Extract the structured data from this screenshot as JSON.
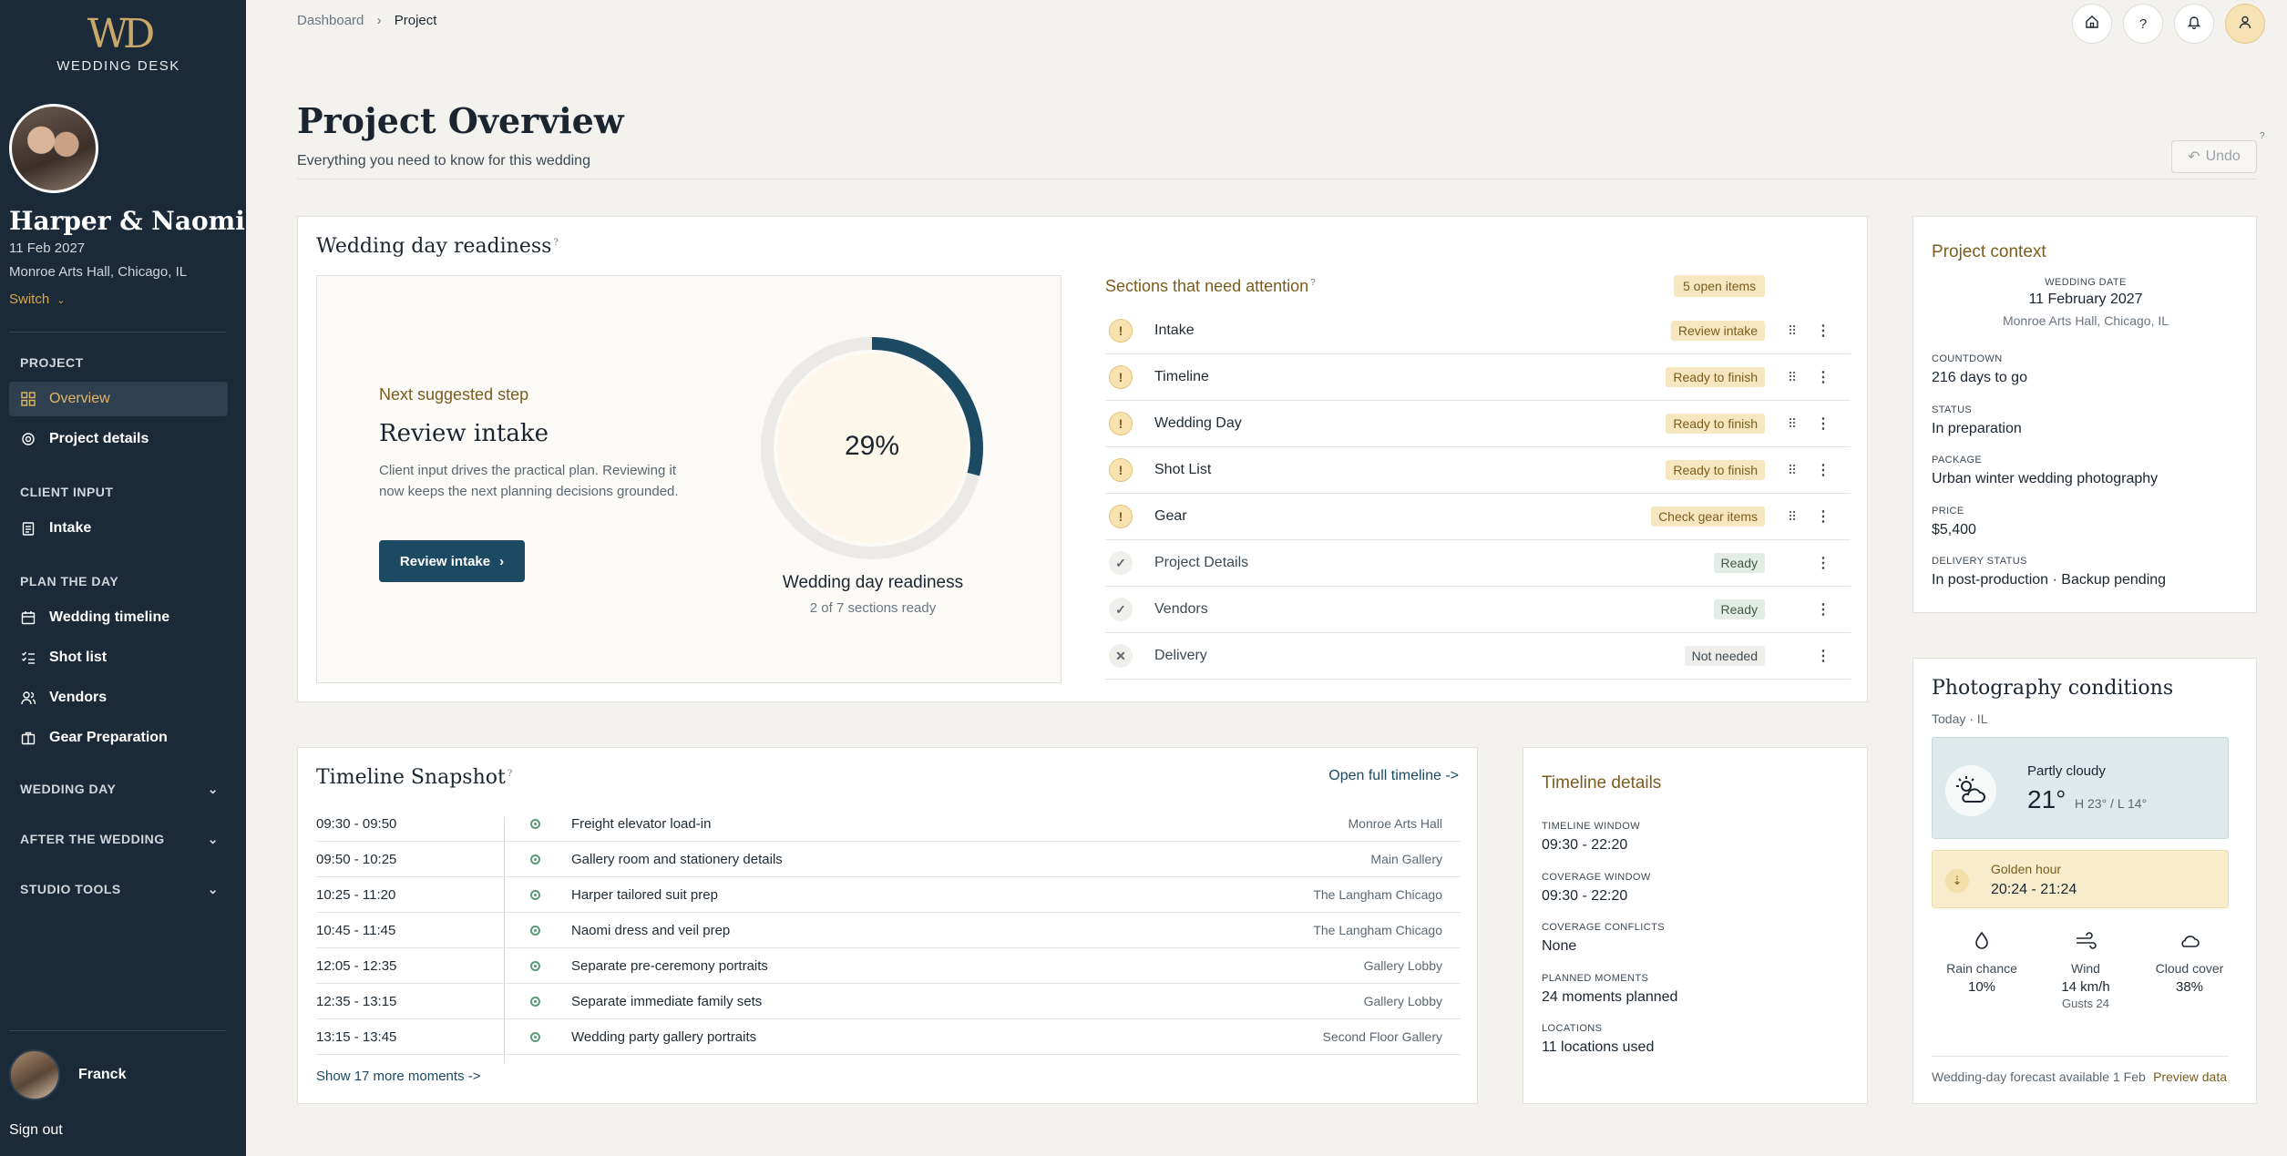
{
  "sidebar": {
    "logo_monogram": "WD",
    "brand": "WEDDING DESK",
    "couple": "Harper & Naomi",
    "date": "11 Feb 2027",
    "venue": "Monroe Arts Hall, Chicago, IL",
    "switch_label": "Switch",
    "sections": {
      "project": "PROJECT",
      "client_input": "CLIENT INPUT",
      "plan_the_day": "PLAN THE DAY"
    },
    "items": {
      "overview": "Overview",
      "project_details": "Project details",
      "intake": "Intake",
      "wedding_timeline": "Wedding timeline",
      "shot_list": "Shot list",
      "vendors": "Vendors",
      "gear_preparation": "Gear Preparation"
    },
    "groups": {
      "wedding_day": "WEDDING DAY",
      "after_the_wedding": "AFTER THE WEDDING",
      "studio_tools": "STUDIO TOOLS"
    },
    "user_name": "Franck",
    "sign_out": "Sign out"
  },
  "breadcrumb": {
    "root": "Dashboard",
    "sep": "›",
    "current": "Project"
  },
  "header": {
    "title": "Project Overview",
    "subtitle": "Everything you need to know for this wedding",
    "undo_label": "Undo"
  },
  "readiness": {
    "title": "Wedding day readiness",
    "next_step_label": "Next suggested step",
    "next_step_title": "Review intake",
    "next_step_desc": "Client input drives the practical plan. Reviewing it now keeps the next planning decisions grounded.",
    "button_label": "Review intake",
    "percent_value": 0.29,
    "percent_label": "29%",
    "ring_label": "Wedding day readiness",
    "ring_sub": "2 of 7 sections ready"
  },
  "attention": {
    "title": "Sections that need attention",
    "badge": "5 open items",
    "rows": [
      {
        "name": "Intake",
        "tag": "Review intake",
        "status": "warn"
      },
      {
        "name": "Timeline",
        "tag": "Ready to finish",
        "status": "warn"
      },
      {
        "name": "Wedding Day",
        "tag": "Ready to finish",
        "status": "warn"
      },
      {
        "name": "Shot List",
        "tag": "Ready to finish",
        "status": "warn"
      },
      {
        "name": "Gear",
        "tag": "Check gear items",
        "status": "warn"
      },
      {
        "name": "Project Details",
        "tag": "Ready",
        "status": "ok"
      },
      {
        "name": "Vendors",
        "tag": "Ready",
        "status": "ok"
      },
      {
        "name": "Delivery",
        "tag": "Not needed",
        "status": "na"
      }
    ]
  },
  "context": {
    "title": "Project context",
    "wedding_date_label": "WEDDING DATE",
    "wedding_date": "11 February 2027",
    "venue": "Monroe Arts Hall, Chicago, IL",
    "countdown_label": "COUNTDOWN",
    "countdown": "216 days to go",
    "status_label": "STATUS",
    "status": "In preparation",
    "package_label": "PACKAGE",
    "package": "Urban winter wedding photography",
    "price_label": "PRICE",
    "price": "$5,400",
    "delivery_label": "DELIVERY STATUS",
    "delivery": "In post-production · Backup pending"
  },
  "conditions": {
    "title": "Photography conditions",
    "subtitle": "Today · IL",
    "weather": "Partly cloudy",
    "temp": "21°",
    "hilo": "H 23° / L 14°",
    "golden_label": "Golden hour",
    "golden_value": "20:24 - 21:24",
    "rain_label": "Rain chance",
    "rain_value": "10%",
    "wind_label": "Wind",
    "wind_value": "14 km/h",
    "wind_gusts": "Gusts 24",
    "cloud_label": "Cloud cover",
    "cloud_value": "38%",
    "footer": "Wedding-day forecast available 1 Feb",
    "preview_link": "Preview data"
  },
  "timeline": {
    "title": "Timeline Snapshot",
    "open_link": "Open full timeline ->",
    "rows": [
      {
        "time": "09:30 - 09:50",
        "event": "Freight elevator load-in",
        "location": "Monroe Arts Hall"
      },
      {
        "time": "09:50 - 10:25",
        "event": "Gallery room and stationery details",
        "location": "Main Gallery"
      },
      {
        "time": "10:25 - 11:20",
        "event": "Harper tailored suit prep",
        "location": "The Langham Chicago"
      },
      {
        "time": "10:45 - 11:45",
        "event": "Naomi dress and veil prep",
        "location": "The Langham Chicago"
      },
      {
        "time": "12:05 - 12:35",
        "event": "Separate pre-ceremony portraits",
        "location": "Gallery Lobby"
      },
      {
        "time": "12:35 - 13:15",
        "event": "Separate immediate family sets",
        "location": "Gallery Lobby"
      },
      {
        "time": "13:15 - 13:45",
        "event": "Wedding party gallery portraits",
        "location": "Second Floor Gallery"
      }
    ],
    "more_link": "Show 17 more moments ->"
  },
  "timeline_details": {
    "title": "Timeline details",
    "window_label": "TIMELINE WINDOW",
    "window": "09:30 - 22:20",
    "coverage_label": "COVERAGE WINDOW",
    "coverage": "09:30 - 22:20",
    "conflicts_label": "COVERAGE CONFLICTS",
    "conflicts": "None",
    "moments_label": "PLANNED MOMENTS",
    "moments": "24 moments planned",
    "locations_label": "LOCATIONS",
    "locations": "11 locations used"
  },
  "colors": {
    "sidebar": "#1b2a38",
    "accent_gold": "#c9a86a",
    "primary": "#1b4a62",
    "amber_tag": "#f7e7c1"
  }
}
